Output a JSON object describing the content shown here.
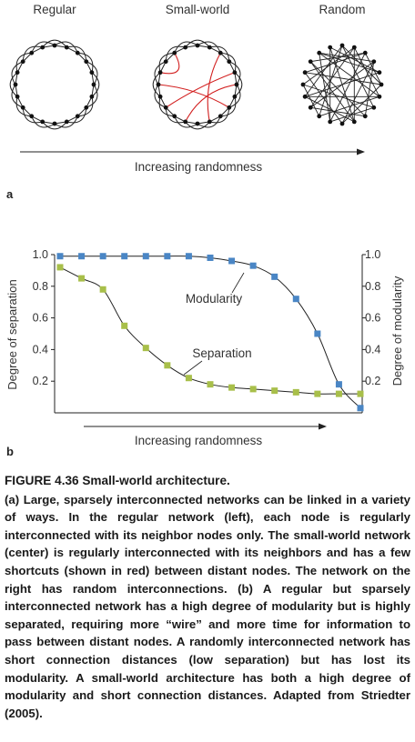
{
  "panel_a": {
    "label": "a",
    "networks": [
      {
        "name": "Regular"
      },
      {
        "name": "Small-world"
      },
      {
        "name": "Random"
      }
    ],
    "axis_label": "Increasing randomness",
    "shortcut_color": "#d21f1f"
  },
  "panel_b": {
    "label": "b",
    "axis_label": "Increasing randomness",
    "left_axis_label": "Degree of separation",
    "right_axis_label": "Degree of modularity",
    "y_ticks": [
      "1.0",
      "0.8",
      "0.6",
      "0.4",
      "0.2"
    ],
    "right_ticks": [
      "1.0",
      "0.8",
      "0.6",
      "0.4",
      "0.2"
    ],
    "chart_data": {
      "type": "scatter",
      "ylim": [
        0,
        1.0
      ],
      "series": [
        {
          "name": "Modularity",
          "color": "#4a86c5",
          "values": [
            0.99,
            0.99,
            0.99,
            0.99,
            0.99,
            0.99,
            0.99,
            0.98,
            0.96,
            0.93,
            0.86,
            0.72,
            0.5,
            0.18,
            0.03
          ]
        },
        {
          "name": "Separation",
          "color": "#a8bf4a",
          "values": [
            0.92,
            0.85,
            0.78,
            0.55,
            0.41,
            0.3,
            0.22,
            0.18,
            0.16,
            0.15,
            0.14,
            0.13,
            0.12,
            0.12,
            0.12
          ]
        }
      ]
    }
  },
  "caption": {
    "title": "FIGURE 4.36 Small-world architecture.",
    "body": "(a) Large, sparsely interconnected networks can be linked in a variety of ways. In the regular network (left), each node is regularly interconnected with its neighbor nodes only. The small-world network (center) is regularly interconnected with its neighbors and has a few shortcuts (shown in red) between distant nodes. The network on the right has random interconnections. (b) A regular but sparsely interconnected network has a high degree of modularity but is highly separated, requiring more “wire” and more time for information to pass between distant nodes. A randomly interconnected network has short connection distances (low separation) but has lost its modularity. A small-world architecture has both a high degree of modularity and short connection distances. Adapted from Striedter (2005)."
  }
}
